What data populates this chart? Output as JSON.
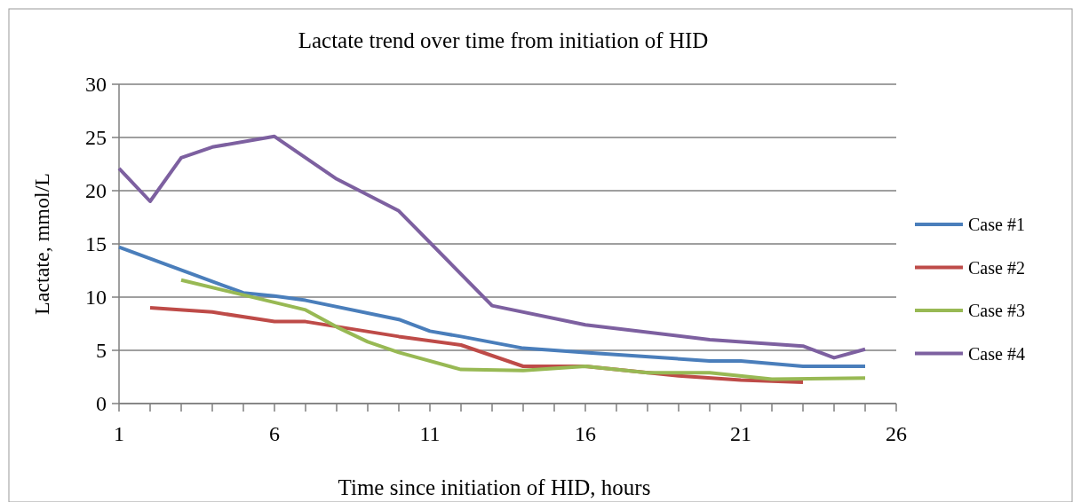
{
  "chart_data": {
    "type": "line",
    "title": "Lactate trend over time from initiation of HID",
    "xlabel": "Time since initiation of HID, hours",
    "ylabel": "Lactate,  mmol/L",
    "xlim": [
      1,
      26
    ],
    "xticks": [
      1,
      {
        "value": 2,
        "label": null
      },
      {
        "value": 3,
        "label": null
      },
      {
        "value": 4,
        "label": null
      },
      {
        "value": 5,
        "label": null
      },
      6,
      {
        "value": 7,
        "label": null
      },
      {
        "value": 8,
        "label": null
      },
      {
        "value": 9,
        "label": null
      },
      {
        "value": 10,
        "label": null
      },
      11,
      {
        "value": 12,
        "label": null
      },
      {
        "value": 13,
        "label": null
      },
      {
        "value": 14,
        "label": null
      },
      {
        "value": 15,
        "label": null
      },
      16,
      {
        "value": 17,
        "label": null
      },
      {
        "value": 18,
        "label": null
      },
      {
        "value": 19,
        "label": null
      },
      {
        "value": 20,
        "label": null
      },
      21,
      {
        "value": 22,
        "label": null
      },
      {
        "value": 23,
        "label": null
      },
      {
        "value": 24,
        "label": null
      },
      {
        "value": 25,
        "label": null
      },
      26
    ],
    "ylim": [
      0,
      30
    ],
    "yticks": [
      0,
      5,
      10,
      15,
      20,
      25,
      30
    ],
    "grid": "y",
    "legend": "right",
    "marker": "none",
    "line_style": "solid",
    "series": [
      {
        "name": "Case #1",
        "color": "#4a7ebb",
        "x": [
          1,
          5,
          6,
          7,
          10,
          11,
          12,
          14,
          16,
          20,
          21,
          23,
          25
        ],
        "values": [
          14.7,
          10.4,
          10.1,
          9.7,
          7.9,
          6.8,
          6.3,
          5.2,
          4.8,
          4.0,
          4.0,
          3.5,
          3.5
        ]
      },
      {
        "name": "Case #2",
        "color": "#be4b48",
        "x": [
          2,
          4,
          6,
          7,
          10,
          12,
          14,
          16,
          19,
          21,
          23
        ],
        "values": [
          9.0,
          8.6,
          7.7,
          7.7,
          6.3,
          5.5,
          3.5,
          3.5,
          2.6,
          2.2,
          2.0
        ]
      },
      {
        "name": "Case #3",
        "color": "#98b954",
        "x": [
          3,
          7,
          8,
          9,
          10,
          12,
          14,
          16,
          18,
          20,
          22,
          25
        ],
        "values": [
          11.6,
          8.8,
          7.2,
          5.8,
          4.8,
          3.2,
          3.1,
          3.5,
          2.9,
          2.9,
          2.3,
          2.4
        ]
      },
      {
        "name": "Case #4",
        "color": "#7d60a0",
        "x": [
          1,
          2,
          3,
          4,
          6,
          8,
          10,
          13,
          16,
          20,
          23,
          24,
          25
        ],
        "values": [
          22.1,
          19.0,
          23.1,
          24.1,
          25.1,
          21.1,
          18.1,
          9.2,
          7.4,
          6.0,
          5.4,
          4.3,
          5.1
        ]
      }
    ]
  }
}
